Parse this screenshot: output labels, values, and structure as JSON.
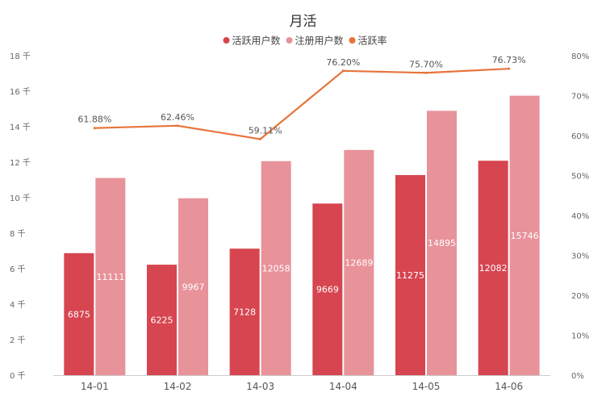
{
  "chart_data": {
    "type": "bar",
    "title": "月活",
    "categories": [
      "14-01",
      "14-02",
      "14-03",
      "14-04",
      "14-05",
      "14-06"
    ],
    "series": [
      {
        "name": "活跃用户数",
        "kind": "bar",
        "axis": "left",
        "color": "#d64550",
        "values": [
          6875,
          6225,
          7128,
          9669,
          11275,
          12082
        ]
      },
      {
        "name": "注册用户数",
        "kind": "bar",
        "axis": "left",
        "color": "#e8929a",
        "values": [
          11111,
          9967,
          12058,
          12689,
          14895,
          15746
        ]
      },
      {
        "name": "活跃率",
        "kind": "line",
        "axis": "right",
        "color": "#e8733a",
        "values": [
          61.88,
          62.46,
          59.11,
          76.2,
          75.7,
          76.73
        ]
      }
    ],
    "bar_labels": [
      [
        "6875",
        "6225",
        "7128",
        "9669",
        "11275",
        "12082"
      ],
      [
        "11111",
        "9967",
        "12058",
        "12689",
        "14895",
        "15746"
      ]
    ],
    "line_labels": [
      "61.88%",
      "62.46%",
      "59.11%",
      "76.20%",
      "75.70%",
      "76.73%"
    ],
    "y_left": {
      "range": [
        0,
        18000
      ],
      "ticks": [
        0,
        2000,
        4000,
        6000,
        8000,
        10000,
        12000,
        14000,
        16000,
        18000
      ],
      "tick_labels": [
        "0 千",
        "2 千",
        "4 千",
        "6 千",
        "8 千",
        "10 千",
        "12 千",
        "14 千",
        "16 千",
        "18 千"
      ]
    },
    "y_right": {
      "range": [
        0,
        80
      ],
      "ticks": [
        0,
        10,
        20,
        30,
        40,
        50,
        60,
        70,
        80
      ],
      "tick_labels": [
        "0%",
        "10%",
        "20%",
        "30%",
        "40%",
        "50%",
        "60%",
        "70%",
        "80%"
      ]
    },
    "legend_position": "top-center",
    "grid": false
  }
}
